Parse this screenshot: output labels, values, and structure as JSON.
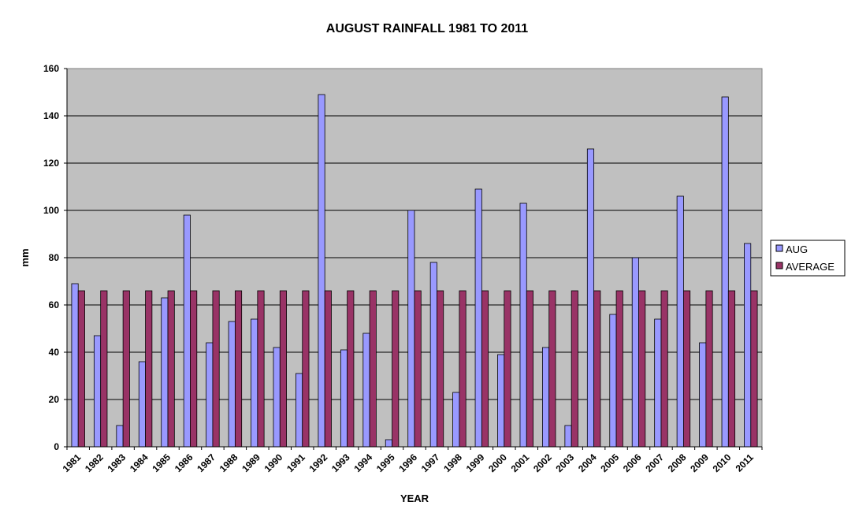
{
  "chart_data": {
    "type": "bar",
    "title": "AUGUST RAINFALL 1981 TO 2011",
    "xlabel": "YEAR",
    "ylabel": "mm",
    "ylim": [
      0,
      160
    ],
    "yticks": [
      0,
      20,
      40,
      60,
      80,
      100,
      120,
      140,
      160
    ],
    "grid": true,
    "legend_position": "right",
    "categories": [
      "1981",
      "1982",
      "1983",
      "1984",
      "1985",
      "1986",
      "1987",
      "1988",
      "1989",
      "1990",
      "1991",
      "1992",
      "1993",
      "1994",
      "1995",
      "1996",
      "1997",
      "1998",
      "1999",
      "2000",
      "2001",
      "2002",
      "2003",
      "2004",
      "2005",
      "2006",
      "2007",
      "2008",
      "2009",
      "2010",
      "2011"
    ],
    "series": [
      {
        "name": "AUG",
        "color": "#9999ff",
        "values": [
          69,
          47,
          9,
          36,
          63,
          98,
          44,
          53,
          54,
          42,
          31,
          149,
          41,
          48,
          3,
          100,
          78,
          23,
          109,
          39,
          103,
          42,
          9,
          126,
          56,
          80,
          54,
          106,
          44,
          148,
          86
        ]
      },
      {
        "name": "AVERAGE",
        "color": "#993366",
        "values": [
          66,
          66,
          66,
          66,
          66,
          66,
          66,
          66,
          66,
          66,
          66,
          66,
          66,
          66,
          66,
          66,
          66,
          66,
          66,
          66,
          66,
          66,
          66,
          66,
          66,
          66,
          66,
          66,
          66,
          66,
          66
        ]
      }
    ],
    "plot_background": "#c0c0c0"
  }
}
